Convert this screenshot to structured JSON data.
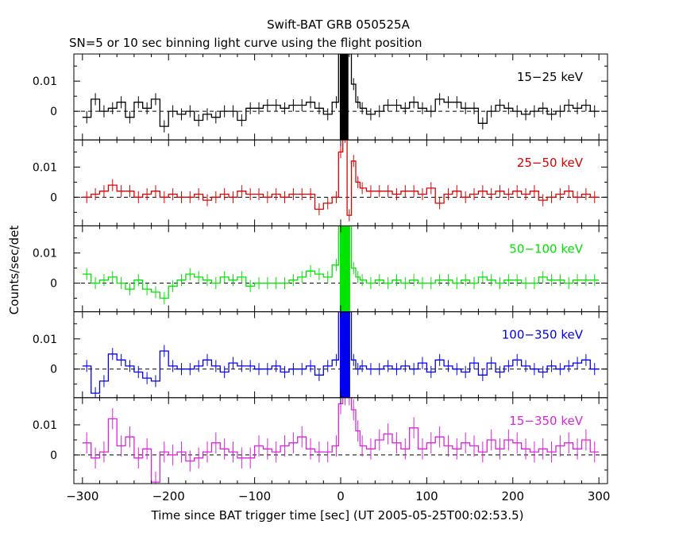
{
  "chart_data": {
    "type": "line",
    "title": "Swift-BAT GRB 050525A",
    "subtitle": "SN=5 or 10 sec binning light curve using the flight position",
    "xlabel": "Time since BAT trigger time [sec] (UT 2005-05-25T00:02:53.5)",
    "ylabel": "Counts/sec/det",
    "xlim": [
      -310,
      310
    ],
    "ylim": [
      -0.0095,
      0.019
    ],
    "xticks": [
      -300,
      -200,
      -100,
      0,
      100,
      200,
      300
    ],
    "xtick_labels": [
      "−300",
      "−200",
      "−100",
      "0",
      "100",
      "200",
      "300"
    ],
    "yticks": [
      0,
      0.01
    ],
    "ytick_labels": [
      "0",
      "0.01"
    ],
    "grid": false,
    "zero_line": "dashed",
    "panels": [
      {
        "name": "15−25 keV",
        "label": "15−25 keV",
        "color": "#000000",
        "band": "15-25",
        "x": [
          -295,
          -285,
          -275,
          -265,
          -255,
          -245,
          -235,
          -225,
          -215,
          -205,
          -195,
          -185,
          -175,
          -165,
          -155,
          -145,
          -135,
          -125,
          -115,
          -105,
          -95,
          -85,
          -75,
          -65,
          -55,
          -45,
          -35,
          -25,
          -15,
          -5,
          0,
          5,
          10,
          15,
          20,
          25,
          35,
          45,
          55,
          65,
          75,
          85,
          95,
          105,
          115,
          125,
          135,
          145,
          155,
          165,
          175,
          185,
          195,
          205,
          215,
          225,
          235,
          245,
          255,
          265,
          275,
          285,
          295
        ],
        "y": [
          -0.002,
          0.004,
          0.0,
          0.001,
          0.003,
          -0.002,
          0.003,
          0.001,
          0.004,
          -0.005,
          0.0,
          -0.001,
          0.0,
          -0.003,
          -0.001,
          -0.002,
          0.0,
          0.0,
          -0.003,
          0.001,
          0.001,
          0.002,
          0.002,
          0.001,
          0.002,
          0.002,
          0.003,
          0.001,
          -0.001,
          0.003,
          0.02,
          0.02,
          0.02,
          0.009,
          0.003,
          0.001,
          -0.001,
          0.0,
          0.002,
          0.002,
          0.001,
          0.003,
          0.001,
          0.0,
          0.004,
          0.003,
          0.003,
          0.001,
          0.001,
          -0.004,
          0.0,
          0.002,
          0.001,
          0.0,
          -0.001,
          0.0,
          0.001,
          -0.001,
          0.0,
          0.002,
          0.001,
          0.002,
          0.0
        ]
      },
      {
        "name": "25−50 keV",
        "label": "25−50 keV",
        "color": "#dd0000",
        "band": "25-50",
        "x": [
          -295,
          -285,
          -275,
          -265,
          -255,
          -245,
          -235,
          -225,
          -215,
          -205,
          -195,
          -185,
          -175,
          -165,
          -155,
          -145,
          -135,
          -125,
          -115,
          -105,
          -95,
          -85,
          -75,
          -65,
          -55,
          -45,
          -35,
          -25,
          -15,
          -5,
          0,
          5,
          10,
          15,
          20,
          25,
          35,
          45,
          55,
          65,
          75,
          85,
          95,
          105,
          115,
          125,
          135,
          145,
          155,
          165,
          175,
          185,
          195,
          205,
          215,
          225,
          235,
          245,
          255,
          265,
          275,
          285,
          295
        ],
        "y": [
          0.0,
          0.001,
          0.002,
          0.004,
          0.002,
          0.002,
          0.0,
          0.001,
          0.002,
          0.0,
          0.001,
          0.0,
          0.0,
          0.001,
          -0.001,
          0.0,
          0.001,
          0.0,
          0.002,
          0.001,
          0.001,
          0.0,
          0.001,
          0.0,
          0.001,
          0.001,
          0.001,
          -0.004,
          -0.002,
          0.0,
          0.015,
          0.02,
          -0.006,
          0.012,
          0.005,
          0.003,
          0.002,
          0.002,
          0.002,
          0.001,
          0.002,
          0.002,
          0.001,
          0.003,
          -0.002,
          0.001,
          0.002,
          0.0,
          0.001,
          0.002,
          0.001,
          0.002,
          0.001,
          0.002,
          0.001,
          0.002,
          -0.001,
          0.0,
          0.001,
          0.002,
          0.0,
          0.001,
          0.0
        ]
      },
      {
        "name": "50−100 keV",
        "label": "50−100 keV",
        "color": "#00e400",
        "band": "50-100",
        "x": [
          -295,
          -285,
          -275,
          -265,
          -255,
          -245,
          -235,
          -225,
          -215,
          -205,
          -195,
          -185,
          -175,
          -165,
          -155,
          -145,
          -135,
          -125,
          -115,
          -105,
          -95,
          -85,
          -75,
          -65,
          -55,
          -45,
          -35,
          -25,
          -15,
          -5,
          0,
          5,
          10,
          15,
          20,
          25,
          35,
          45,
          55,
          65,
          75,
          85,
          95,
          105,
          115,
          125,
          135,
          145,
          155,
          165,
          175,
          185,
          195,
          205,
          215,
          225,
          235,
          245,
          255,
          265,
          275,
          285,
          295
        ],
        "y": [
          0.003,
          0.0,
          0.001,
          0.002,
          0.0,
          -0.002,
          0.001,
          -0.002,
          -0.003,
          -0.005,
          -0.001,
          0.001,
          0.003,
          0.002,
          0.001,
          0.0,
          0.002,
          0.001,
          0.002,
          -0.001,
          0.0,
          0.0,
          0.0,
          0.0,
          0.001,
          0.002,
          0.004,
          0.003,
          0.002,
          0.006,
          0.02,
          0.02,
          0.02,
          0.005,
          0.002,
          0.001,
          0.0,
          0.001,
          0.0,
          0.001,
          0.0,
          0.001,
          0.0,
          0.0,
          0.001,
          0.001,
          0.0,
          0.001,
          0.0,
          0.002,
          0.001,
          0.0,
          0.001,
          0.001,
          0.0,
          0.0,
          0.002,
          0.001,
          0.001,
          0.0,
          0.001,
          0.001,
          0.001
        ]
      },
      {
        "name": "100−350 keV",
        "label": "100−350 keV",
        "color": "#0000ee",
        "band": "100-350",
        "x": [
          -295,
          -285,
          -275,
          -265,
          -255,
          -245,
          -235,
          -225,
          -215,
          -205,
          -195,
          -185,
          -175,
          -165,
          -155,
          -145,
          -135,
          -125,
          -115,
          -105,
          -95,
          -85,
          -75,
          -65,
          -55,
          -45,
          -35,
          -25,
          -15,
          -5,
          0,
          5,
          10,
          15,
          20,
          25,
          35,
          45,
          55,
          65,
          75,
          85,
          95,
          105,
          115,
          125,
          135,
          145,
          155,
          165,
          175,
          185,
          195,
          205,
          215,
          225,
          235,
          245,
          255,
          265,
          275,
          285,
          295
        ],
        "y": [
          0.001,
          -0.008,
          -0.004,
          0.005,
          0.003,
          0.001,
          -0.001,
          -0.003,
          -0.004,
          0.006,
          0.001,
          0.0,
          0.0,
          0.001,
          0.003,
          0.001,
          -0.001,
          0.002,
          0.001,
          0.001,
          0.0,
          0.0,
          0.001,
          -0.001,
          0.0,
          0.0,
          0.001,
          -0.002,
          0.001,
          0.003,
          0.02,
          0.02,
          0.02,
          0.003,
          0.0,
          0.001,
          0.0,
          0.0,
          0.001,
          0.0,
          0.001,
          0.0,
          0.002,
          -0.001,
          0.003,
          0.001,
          0.0,
          -0.001,
          0.002,
          -0.002,
          0.002,
          -0.001,
          0.001,
          0.003,
          0.001,
          0.0,
          -0.001,
          0.001,
          0.0,
          0.001,
          0.002,
          0.003,
          0.0
        ]
      },
      {
        "name": "15−350 keV",
        "label": "15−350 keV",
        "color": "#dd22dd",
        "band": "15-350",
        "x": [
          -295,
          -285,
          -275,
          -265,
          -255,
          -245,
          -235,
          -225,
          -215,
          -205,
          -195,
          -185,
          -175,
          -165,
          -155,
          -145,
          -135,
          -125,
          -115,
          -105,
          -95,
          -85,
          -75,
          -65,
          -55,
          -45,
          -35,
          -25,
          -15,
          -5,
          0,
          5,
          10,
          15,
          20,
          25,
          35,
          45,
          55,
          65,
          75,
          85,
          95,
          105,
          115,
          125,
          135,
          145,
          155,
          165,
          175,
          185,
          195,
          205,
          215,
          225,
          235,
          245,
          255,
          265,
          275,
          285,
          295
        ],
        "y": [
          0.004,
          -0.001,
          0.001,
          0.012,
          0.003,
          0.006,
          -0.001,
          0.002,
          -0.009,
          0.001,
          0.0,
          0.001,
          -0.002,
          -0.001,
          0.001,
          0.004,
          0.002,
          0.001,
          -0.001,
          -0.001,
          0.003,
          0.002,
          0.001,
          0.003,
          0.004,
          0.006,
          0.002,
          0.001,
          0.001,
          0.003,
          0.017,
          0.02,
          0.02,
          0.015,
          0.008,
          0.003,
          0.002,
          0.005,
          0.007,
          0.004,
          0.002,
          0.009,
          0.002,
          0.004,
          0.006,
          0.003,
          0.002,
          0.004,
          0.003,
          0.001,
          0.005,
          0.002,
          0.005,
          0.004,
          0.002,
          0.001,
          0.002,
          0.001,
          0.003,
          0.004,
          0.002,
          0.005,
          0.001
        ]
      }
    ]
  }
}
